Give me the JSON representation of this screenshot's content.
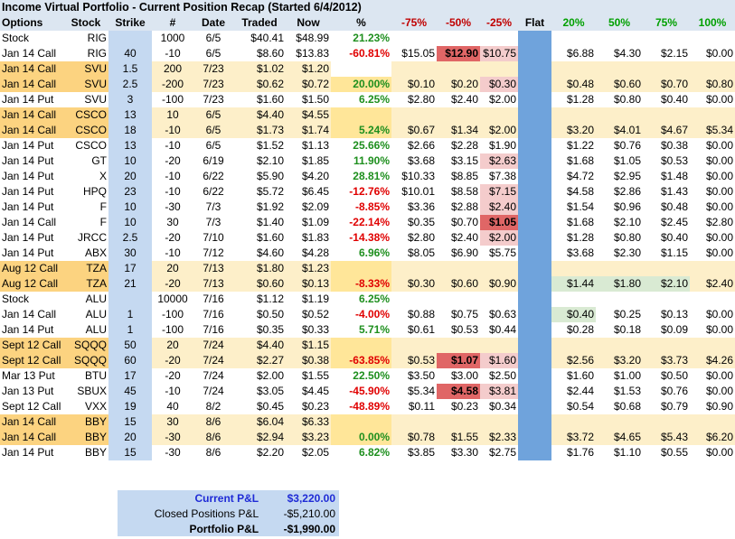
{
  "title": "Income Virtual Portfolio - Current Position Recap (Started 6/4/2012)",
  "headers": [
    "Options",
    "Stock",
    "Strike",
    "#",
    "Date",
    "Traded",
    "Now",
    "%",
    "-75%",
    "-50%",
    "-25%",
    "Flat",
    "20%",
    "50%",
    "75%",
    "100%"
  ],
  "rows": [
    {
      "opt": "Stock",
      "stk": "RIG",
      "strike": "",
      "n": "1000",
      "date": "6/5",
      "traded": "$40.41",
      "now": "$48.99",
      "pct": "21.23%",
      "s": [
        "",
        "",
        "",
        "",
        "",
        "",
        "",
        ""
      ]
    },
    {
      "opt": "Jan 14 Call",
      "stk": "RIG",
      "strike": "40",
      "n": "-10",
      "date": "6/5",
      "traded": "$8.60",
      "now": "$13.83",
      "pct": "-60.81%",
      "s": [
        "$15.05",
        "$12.90",
        "$10.75",
        "",
        "$6.88",
        "$4.30",
        "$2.15",
        "$0.00"
      ]
    },
    {
      "opt": "Jan 14 Call",
      "stk": "SVU",
      "strike": "1.5",
      "n": "200",
      "date": "7/23",
      "traded": "$1.02",
      "now": "$1.20",
      "pct": "",
      "s": [
        "",
        "",
        "",
        "",
        "",
        "",
        "",
        ""
      ]
    },
    {
      "opt": "Jan 14 Call",
      "stk": "SVU",
      "strike": "2.5",
      "n": "-200",
      "date": "7/23",
      "traded": "$0.62",
      "now": "$0.72",
      "pct": "20.00%",
      "s": [
        "$0.10",
        "$0.20",
        "$0.30",
        "",
        "$0.48",
        "$0.60",
        "$0.70",
        "$0.80"
      ]
    },
    {
      "opt": "Jan 14 Put",
      "stk": "SVU",
      "strike": "3",
      "n": "-100",
      "date": "7/23",
      "traded": "$1.60",
      "now": "$1.50",
      "pct": "6.25%",
      "s": [
        "$2.80",
        "$2.40",
        "$2.00",
        "",
        "$1.28",
        "$0.80",
        "$0.40",
        "$0.00"
      ]
    },
    {
      "opt": "Jan 14 Call",
      "stk": "CSCO",
      "strike": "13",
      "n": "10",
      "date": "6/5",
      "traded": "$4.40",
      "now": "$4.55",
      "pct": "",
      "s": [
        "",
        "",
        "",
        "",
        "",
        "",
        "",
        ""
      ]
    },
    {
      "opt": "Jan 14 Call",
      "stk": "CSCO",
      "strike": "18",
      "n": "-10",
      "date": "6/5",
      "traded": "$1.73",
      "now": "$1.74",
      "pct": "5.24%",
      "s": [
        "$0.67",
        "$1.34",
        "$2.00",
        "",
        "$3.20",
        "$4.01",
        "$4.67",
        "$5.34"
      ]
    },
    {
      "opt": "Jan 14 Put",
      "stk": "CSCO",
      "strike": "13",
      "n": "-10",
      "date": "6/5",
      "traded": "$1.52",
      "now": "$1.13",
      "pct": "25.66%",
      "s": [
        "$2.66",
        "$2.28",
        "$1.90",
        "",
        "$1.22",
        "$0.76",
        "$0.38",
        "$0.00"
      ]
    },
    {
      "opt": "Jan 14 Put",
      "stk": "GT",
      "strike": "10",
      "n": "-20",
      "date": "6/19",
      "traded": "$2.10",
      "now": "$1.85",
      "pct": "11.90%",
      "s": [
        "$3.68",
        "$3.15",
        "$2.63",
        "",
        "$1.68",
        "$1.05",
        "$0.53",
        "$0.00"
      ]
    },
    {
      "opt": "Jan 14 Put",
      "stk": "X",
      "strike": "20",
      "n": "-10",
      "date": "6/22",
      "traded": "$5.90",
      "now": "$4.20",
      "pct": "28.81%",
      "s": [
        "$10.33",
        "$8.85",
        "$7.38",
        "",
        "$4.72",
        "$2.95",
        "$1.48",
        "$0.00"
      ]
    },
    {
      "opt": "Jan 14 Put",
      "stk": "HPQ",
      "strike": "23",
      "n": "-10",
      "date": "6/22",
      "traded": "$5.72",
      "now": "$6.45",
      "pct": "-12.76%",
      "s": [
        "$10.01",
        "$8.58",
        "$7.15",
        "",
        "$4.58",
        "$2.86",
        "$1.43",
        "$0.00"
      ]
    },
    {
      "opt": "Jan 14 Put",
      "stk": "F",
      "strike": "10",
      "n": "-30",
      "date": "7/3",
      "traded": "$1.92",
      "now": "$2.09",
      "pct": "-8.85%",
      "s": [
        "$3.36",
        "$2.88",
        "$2.40",
        "",
        "$1.54",
        "$0.96",
        "$0.48",
        "$0.00"
      ]
    },
    {
      "opt": "Jan 14 Call",
      "stk": "F",
      "strike": "10",
      "n": "30",
      "date": "7/3",
      "traded": "$1.40",
      "now": "$1.09",
      "pct": "-22.14%",
      "s": [
        "$0.35",
        "$0.70",
        "$1.05",
        "",
        "$1.68",
        "$2.10",
        "$2.45",
        "$2.80"
      ]
    },
    {
      "opt": "Jan 14 Put",
      "stk": "JRCC",
      "strike": "2.5",
      "n": "-20",
      "date": "7/10",
      "traded": "$1.60",
      "now": "$1.83",
      "pct": "-14.38%",
      "s": [
        "$2.80",
        "$2.40",
        "$2.00",
        "",
        "$1.28",
        "$0.80",
        "$0.40",
        "$0.00"
      ]
    },
    {
      "opt": "Jan 14 Put",
      "stk": "ABX",
      "strike": "30",
      "n": "-10",
      "date": "7/12",
      "traded": "$4.60",
      "now": "$4.28",
      "pct": "6.96%",
      "s": [
        "$8.05",
        "$6.90",
        "$5.75",
        "",
        "$3.68",
        "$2.30",
        "$1.15",
        "$0.00"
      ]
    },
    {
      "opt": "Aug 12 Call",
      "stk": "TZA",
      "strike": "17",
      "n": "20",
      "date": "7/13",
      "traded": "$1.80",
      "now": "$1.23",
      "pct": "",
      "s": [
        "",
        "",
        "",
        "",
        "",
        "",
        "",
        ""
      ]
    },
    {
      "opt": "Aug 12 Call",
      "stk": "TZA",
      "strike": "21",
      "n": "-20",
      "date": "7/13",
      "traded": "$0.60",
      "now": "$0.13",
      "pct": "-8.33%",
      "s": [
        "$0.30",
        "$0.60",
        "$0.90",
        "",
        "$1.44",
        "$1.80",
        "$2.10",
        "$2.40"
      ]
    },
    {
      "opt": "Stock",
      "stk": "ALU",
      "strike": "",
      "n": "10000",
      "date": "7/16",
      "traded": "$1.12",
      "now": "$1.19",
      "pct": "6.25%",
      "s": [
        "",
        "",
        "",
        "",
        "",
        "",
        "",
        ""
      ]
    },
    {
      "opt": "Jan 14 Call",
      "stk": "ALU",
      "strike": "1",
      "n": "-100",
      "date": "7/16",
      "traded": "$0.50",
      "now": "$0.52",
      "pct": "-4.00%",
      "s": [
        "$0.88",
        "$0.75",
        "$0.63",
        "",
        "$0.40",
        "$0.25",
        "$0.13",
        "$0.00"
      ]
    },
    {
      "opt": "Jan 14 Put",
      "stk": "ALU",
      "strike": "1",
      "n": "-100",
      "date": "7/16",
      "traded": "$0.35",
      "now": "$0.33",
      "pct": "5.71%",
      "s": [
        "$0.61",
        "$0.53",
        "$0.44",
        "",
        "$0.28",
        "$0.18",
        "$0.09",
        "$0.00"
      ]
    },
    {
      "opt": "Sept 12 Call",
      "stk": "SQQQ",
      "strike": "50",
      "n": "20",
      "date": "7/24",
      "traded": "$4.40",
      "now": "$1.15",
      "pct": "",
      "s": [
        "",
        "",
        "",
        "",
        "",
        "",
        "",
        ""
      ]
    },
    {
      "opt": "Sept 12 Call",
      "stk": "SQQQ",
      "strike": "60",
      "n": "-20",
      "date": "7/24",
      "traded": "$2.27",
      "now": "$0.38",
      "pct": "-63.85%",
      "s": [
        "$0.53",
        "$1.07",
        "$1.60",
        "",
        "$2.56",
        "$3.20",
        "$3.73",
        "$4.26"
      ]
    },
    {
      "opt": "Mar 13 Put",
      "stk": "BTU",
      "strike": "17",
      "n": "-20",
      "date": "7/24",
      "traded": "$2.00",
      "now": "$1.55",
      "pct": "22.50%",
      "s": [
        "$3.50",
        "$3.00",
        "$2.50",
        "",
        "$1.60",
        "$1.00",
        "$0.50",
        "$0.00"
      ]
    },
    {
      "opt": "Jan 13 Put",
      "stk": "SBUX",
      "strike": "45",
      "n": "-10",
      "date": "7/24",
      "traded": "$3.05",
      "now": "$4.45",
      "pct": "-45.90%",
      "s": [
        "$5.34",
        "$4.58",
        "$3.81",
        "",
        "$2.44",
        "$1.53",
        "$0.76",
        "$0.00"
      ]
    },
    {
      "opt": "Sept 12 Call",
      "stk": "VXX",
      "strike": "19",
      "n": "40",
      "date": "8/2",
      "traded": "$0.45",
      "now": "$0.23",
      "pct": "-48.89%",
      "s": [
        "$0.11",
        "$0.23",
        "$0.34",
        "",
        "$0.54",
        "$0.68",
        "$0.79",
        "$0.90"
      ]
    },
    {
      "opt": "Jan 14 Call",
      "stk": "BBY",
      "strike": "15",
      "n": "30",
      "date": "8/6",
      "traded": "$6.04",
      "now": "$6.33",
      "pct": "",
      "s": [
        "",
        "",
        "",
        "",
        "",
        "",
        "",
        ""
      ]
    },
    {
      "opt": "Jan 14 Call",
      "stk": "BBY",
      "strike": "20",
      "n": "-30",
      "date": "8/6",
      "traded": "$2.94",
      "now": "$3.23",
      "pct": "0.00%",
      "s": [
        "$0.78",
        "$1.55",
        "$2.33",
        "",
        "$3.72",
        "$4.65",
        "$5.43",
        "$6.20"
      ]
    },
    {
      "opt": "Jan 14 Put",
      "stk": "BBY",
      "strike": "15",
      "n": "-30",
      "date": "8/6",
      "traded": "$2.20",
      "now": "$2.05",
      "pct": "6.82%",
      "s": [
        "$3.85",
        "$3.30",
        "$2.75",
        "",
        "$1.76",
        "$1.10",
        "$0.55",
        "$0.00"
      ]
    }
  ],
  "row_styles": {
    "gold_rows": [
      2,
      3,
      5,
      6,
      15,
      16,
      20,
      21,
      25,
      26
    ],
    "yellow_pct_rows": [
      3,
      5,
      6,
      15,
      16,
      20,
      21,
      25,
      26
    ],
    "red_strong": [
      [
        1,
        9
      ],
      [
        12,
        10
      ],
      [
        21,
        9
      ],
      [
        23,
        9
      ]
    ],
    "red_light": [
      [
        1,
        10
      ],
      [
        3,
        10
      ],
      [
        8,
        10
      ],
      [
        10,
        10
      ],
      [
        11,
        10
      ],
      [
        13,
        10
      ],
      [
        21,
        10
      ],
      [
        23,
        10
      ]
    ],
    "green_strong": [
      [
        3,
        12
      ],
      [
        7,
        12
      ],
      [
        9,
        12
      ],
      [
        22,
        12
      ]
    ],
    "green_light": [
      [
        16,
        12
      ],
      [
        16,
        13
      ],
      [
        16,
        14
      ],
      [
        18,
        12
      ]
    ]
  },
  "summary": {
    "current_label": "Current P&L",
    "current_value": "$3,220.00",
    "closed_label": "Closed Positions P&L",
    "closed_value": "-$5,210.00",
    "portfolio_label": "Portfolio P&L",
    "portfolio_value": "-$1,990.00"
  },
  "colors": {
    "header_bg": "#dce6f1",
    "gold": "#fcd380",
    "cream": "#fdefc9",
    "strike_bg": "#c5d9f1",
    "flat_bg": "#6fa3dc",
    "red_strong": "#e06666",
    "green_strong": "#76b76c"
  }
}
